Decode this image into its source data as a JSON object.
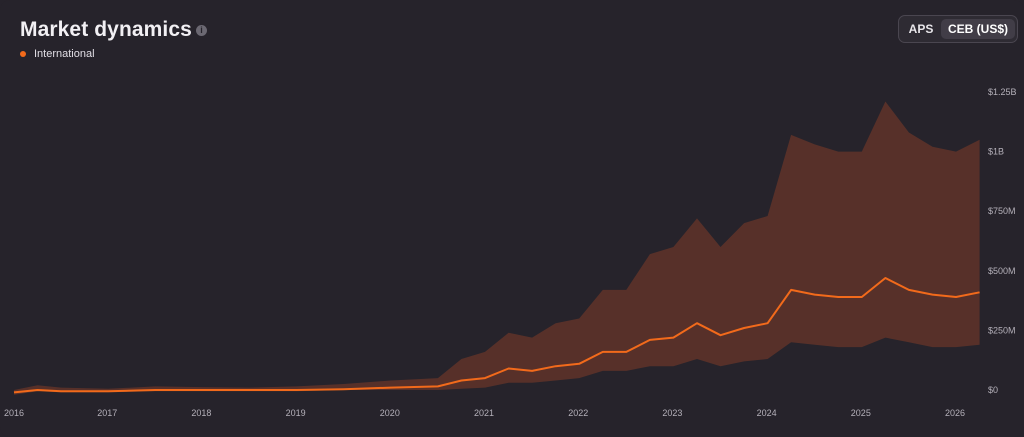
{
  "header": {
    "title": "Market dynamics",
    "info_icon": "info-icon",
    "legend_label": "International",
    "legend_color": "#f26a1b"
  },
  "toggle": {
    "options": [
      "APS",
      "CEB (US$)"
    ],
    "selected": "CEB (US$)"
  },
  "chart_data": {
    "type": "area",
    "series": [
      {
        "name": "International",
        "color": "#f26a1b"
      }
    ],
    "band_color": "#5a3129",
    "x_tick_labels": [
      "2016",
      "2017",
      "2018",
      "2019",
      "2020",
      "2021",
      "2022",
      "2023",
      "2024",
      "2025",
      "2026"
    ],
    "y_tick_labels": [
      "$0",
      "$250M",
      "$500M",
      "$750M",
      "$1B",
      "$1.25B"
    ],
    "xlim": [
      "2016-01",
      "2026-04"
    ],
    "ylim": [
      0,
      1.25
    ],
    "y_unit": "billion US$",
    "grid": false,
    "legend_position": "top-left",
    "points": [
      {
        "x": "2016-01",
        "lo": -0.02,
        "mid": -0.01,
        "hi": 0.0
      },
      {
        "x": "2016-04",
        "lo": -0.005,
        "mid": 0.0,
        "hi": 0.02
      },
      {
        "x": "2016-07",
        "lo": -0.01,
        "mid": -0.005,
        "hi": 0.01
      },
      {
        "x": "2017-01",
        "lo": -0.01,
        "mid": -0.005,
        "hi": 0.005
      },
      {
        "x": "2017-07",
        "lo": -0.005,
        "mid": 0.0,
        "hi": 0.015
      },
      {
        "x": "2018-01",
        "lo": -0.005,
        "mid": 0.0,
        "hi": 0.012
      },
      {
        "x": "2018-07",
        "lo": -0.005,
        "mid": 0.0,
        "hi": 0.01
      },
      {
        "x": "2019-01",
        "lo": -0.005,
        "mid": 0.0,
        "hi": 0.015
      },
      {
        "x": "2019-07",
        "lo": 0.0,
        "mid": 0.003,
        "hi": 0.025
      },
      {
        "x": "2020-01",
        "lo": 0.0,
        "mid": 0.01,
        "hi": 0.04
      },
      {
        "x": "2020-07",
        "lo": 0.0,
        "mid": 0.015,
        "hi": 0.05
      },
      {
        "x": "2020-10",
        "lo": 0.005,
        "mid": 0.04,
        "hi": 0.13
      },
      {
        "x": "2021-01",
        "lo": 0.01,
        "mid": 0.05,
        "hi": 0.16
      },
      {
        "x": "2021-04",
        "lo": 0.03,
        "mid": 0.09,
        "hi": 0.24
      },
      {
        "x": "2021-07",
        "lo": 0.03,
        "mid": 0.08,
        "hi": 0.22
      },
      {
        "x": "2021-10",
        "lo": 0.04,
        "mid": 0.1,
        "hi": 0.28
      },
      {
        "x": "2022-01",
        "lo": 0.05,
        "mid": 0.11,
        "hi": 0.3
      },
      {
        "x": "2022-04",
        "lo": 0.08,
        "mid": 0.16,
        "hi": 0.42
      },
      {
        "x": "2022-07",
        "lo": 0.08,
        "mid": 0.16,
        "hi": 0.42
      },
      {
        "x": "2022-10",
        "lo": 0.1,
        "mid": 0.21,
        "hi": 0.57
      },
      {
        "x": "2023-01",
        "lo": 0.1,
        "mid": 0.22,
        "hi": 0.6
      },
      {
        "x": "2023-04",
        "lo": 0.13,
        "mid": 0.28,
        "hi": 0.72
      },
      {
        "x": "2023-07",
        "lo": 0.1,
        "mid": 0.23,
        "hi": 0.6
      },
      {
        "x": "2023-10",
        "lo": 0.12,
        "mid": 0.26,
        "hi": 0.7
      },
      {
        "x": "2024-01",
        "lo": 0.13,
        "mid": 0.28,
        "hi": 0.73
      },
      {
        "x": "2024-04",
        "lo": 0.2,
        "mid": 0.42,
        "hi": 1.07
      },
      {
        "x": "2024-07",
        "lo": 0.19,
        "mid": 0.4,
        "hi": 1.03
      },
      {
        "x": "2024-10",
        "lo": 0.18,
        "mid": 0.39,
        "hi": 1.0
      },
      {
        "x": "2025-01",
        "lo": 0.18,
        "mid": 0.39,
        "hi": 1.0
      },
      {
        "x": "2025-04",
        "lo": 0.22,
        "mid": 0.47,
        "hi": 1.21
      },
      {
        "x": "2025-07",
        "lo": 0.2,
        "mid": 0.42,
        "hi": 1.08
      },
      {
        "x": "2025-10",
        "lo": 0.18,
        "mid": 0.4,
        "hi": 1.02
      },
      {
        "x": "2026-01",
        "lo": 0.18,
        "mid": 0.39,
        "hi": 1.0
      },
      {
        "x": "2026-04",
        "lo": 0.19,
        "mid": 0.41,
        "hi": 1.05
      }
    ]
  }
}
